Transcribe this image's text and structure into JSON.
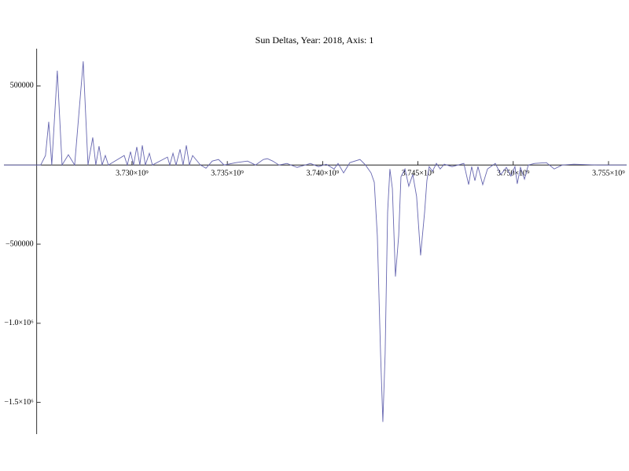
{
  "chart_data": {
    "type": "line",
    "title": "Sun Deltas, Year: 2018, Axis: 1",
    "x": [
      3723280000,
      3725210000,
      3725460000,
      3725630000,
      3725790000,
      3726080000,
      3726330000,
      3726660000,
      3726990000,
      3727440000,
      3727690000,
      3727940000,
      3728100000,
      3728270000,
      3728430000,
      3728600000,
      3728760000,
      3729590000,
      3729750000,
      3729920000,
      3730080000,
      3730250000,
      3730410000,
      3730540000,
      3730700000,
      3730910000,
      3731070000,
      3731860000,
      3731980000,
      3732150000,
      3732310000,
      3732520000,
      3732680000,
      3732850000,
      3733010000,
      3733180000,
      3733590000,
      3733880000,
      3734210000,
      3734540000,
      3734830000,
      3735450000,
      3736060000,
      3736480000,
      3736890000,
      3737100000,
      3737380000,
      3737710000,
      3738130000,
      3738660000,
      3739360000,
      3739780000,
      3740190000,
      3740600000,
      3740810000,
      3741100000,
      3741430000,
      3741960000,
      3742250000,
      3742540000,
      3742710000,
      3742870000,
      3743040000,
      3743160000,
      3743280000,
      3743410000,
      3743530000,
      3743660000,
      3743820000,
      3743990000,
      3744110000,
      3744320000,
      3744520000,
      3744730000,
      3744930000,
      3745140000,
      3745350000,
      3745470000,
      3745590000,
      3745760000,
      3745970000,
      3746170000,
      3746380000,
      3746790000,
      3747410000,
      3747660000,
      3747820000,
      3747990000,
      3748150000,
      3748400000,
      3748650000,
      3749060000,
      3749350000,
      3749640000,
      3749880000,
      3750090000,
      3750210000,
      3750380000,
      3750590000,
      3750790000,
      3751120000,
      3751740000,
      3752150000,
      3752570000,
      3753190000,
      3754420000,
      3755950000
    ],
    "series": [
      {
        "name": "Sun Deltas",
        "color": "#6666b0",
        "values": [
          0,
          0,
          60000,
          273000,
          0,
          596000,
          0,
          65000,
          0,
          655000,
          0,
          174000,
          0,
          119000,
          0,
          60000,
          0,
          60000,
          0,
          84000,
          0,
          114000,
          0,
          124000,
          0,
          74000,
          0,
          50000,
          0,
          74000,
          0,
          99000,
          0,
          124000,
          0,
          60000,
          0,
          -20000,
          25000,
          35000,
          0,
          15000,
          25000,
          0,
          35000,
          40000,
          25000,
          0,
          10000,
          -15000,
          10000,
          -10000,
          5000,
          -25000,
          10000,
          -50000,
          15000,
          35000,
          0,
          -50000,
          -109000,
          -447000,
          -1191000,
          -1623000,
          -1191000,
          -298000,
          -25000,
          -149000,
          -705000,
          -447000,
          -74000,
          -25000,
          -134000,
          -60000,
          -199000,
          -571000,
          -298000,
          -99000,
          -10000,
          -40000,
          10000,
          -25000,
          5000,
          -10000,
          10000,
          -124000,
          -10000,
          -99000,
          -10000,
          -124000,
          -25000,
          10000,
          -60000,
          -15000,
          -70000,
          -10000,
          -119000,
          -15000,
          -89000,
          0,
          10000,
          15000,
          -25000,
          0,
          5000,
          0,
          0
        ]
      }
    ],
    "xlim": [
      3723280000,
      3755950000
    ],
    "ylim": [
      -1700000,
      735000
    ],
    "axes_origin": [
      3725000000,
      0
    ],
    "xticks": [
      {
        "value": 3730000000,
        "label": "3.730×10⁹"
      },
      {
        "value": 3735000000,
        "label": "3.735×10⁹"
      },
      {
        "value": 3740000000,
        "label": "3.740×10⁹"
      },
      {
        "value": 3745000000,
        "label": "3.745×10⁹"
      },
      {
        "value": 3750000000,
        "label": "3.750×10⁹"
      },
      {
        "value": 3755000000,
        "label": "3.755×10⁹"
      }
    ],
    "yticks": [
      500000,
      {
        "value": -500000,
        "label": "−500000"
      },
      {
        "value": -1000000,
        "label": "−1.0×10⁶"
      },
      {
        "value": -1500000,
        "label": "−1.5×10⁶"
      }
    ],
    "grid": false
  }
}
